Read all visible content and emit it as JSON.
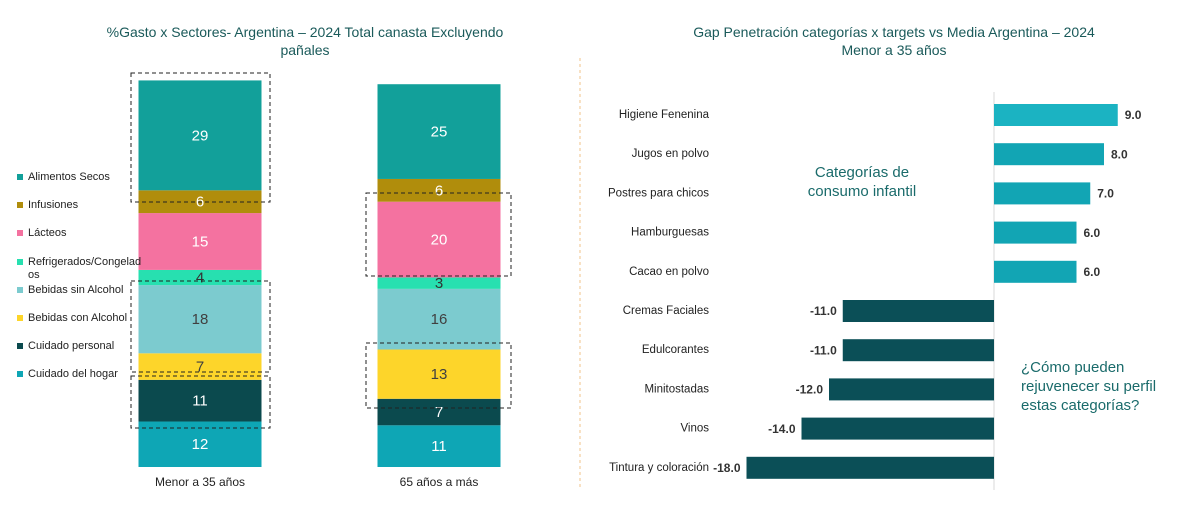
{
  "chart_data": [
    {
      "type": "stacked-bar",
      "title": "%Gasto x Sectores- Argentina – 2024 Total canasta Excluyendo pañales",
      "categories": [
        "Menor a 35 años",
        "65 años a más"
      ],
      "series": [
        {
          "name": "Alimentos Secos",
          "color": "#12a09a",
          "label_color": "#ffffff",
          "values": [
            29,
            25
          ]
        },
        {
          "name": "Infusiones",
          "color": "#b08d0c",
          "label_color": "#ffffff",
          "values": [
            6,
            6
          ]
        },
        {
          "name": "Lácteos",
          "color": "#f472a0",
          "label_color": "#ffffff",
          "values": [
            15,
            20
          ]
        },
        {
          "name": "Refrigerados/Congelados",
          "color": "#27e0b0",
          "label_color": "#333333",
          "values": [
            4,
            3
          ]
        },
        {
          "name": "Bebidas sin Alcohol",
          "color": "#7ccbcf",
          "label_color": "#404040",
          "values": [
            18,
            16
          ]
        },
        {
          "name": "Bebidas con Alcohol",
          "color": "#fdd52a",
          "label_color": "#404040",
          "values": [
            7,
            13
          ]
        },
        {
          "name": "Cuidado personal",
          "color": "#0b4a4e",
          "label_color": "#ffffff",
          "values": [
            11,
            7
          ]
        },
        {
          "name": "Cuidado del hogar",
          "color": "#0ea6b5",
          "label_color": "#ffffff",
          "values": [
            12,
            11
          ]
        }
      ]
    },
    {
      "type": "hbar",
      "title": "Gap Penetración categorías x targets vs Media Argentina – 2024",
      "subtitle": "Menor a 35 años",
      "categories": [
        "Higiene Fenenina",
        "Jugos en polvo",
        "Postres para chicos",
        "Hamburguesas",
        "Cacao en polvo",
        "Cremas Faciales",
        "Edulcorantes",
        "Minitostadas",
        "Vinos",
        "Tintura y coloración"
      ],
      "values": [
        9,
        8,
        7,
        6,
        6,
        -11,
        -11,
        -12,
        -14,
        -18
      ],
      "value_labels": [
        "9.0",
        "8.0",
        "7.0",
        "6.0",
        "6.0",
        "-11.0",
        "-11.0",
        "-12.0",
        "-14.0",
        "-18.0"
      ],
      "colors": [
        "#1bb3c2",
        "#12a5b4",
        "#12a5b4",
        "#12a5b4",
        "#12a5b4",
        "#0b4f57",
        "#0b4f57",
        "#0b4f57",
        "#0b4f57",
        "#0b4f57"
      ],
      "annotations": [
        "Categorías de consumo infantil",
        "¿Cómo pueden rejuvenecer su perfil estas categorías?"
      ]
    }
  ]
}
